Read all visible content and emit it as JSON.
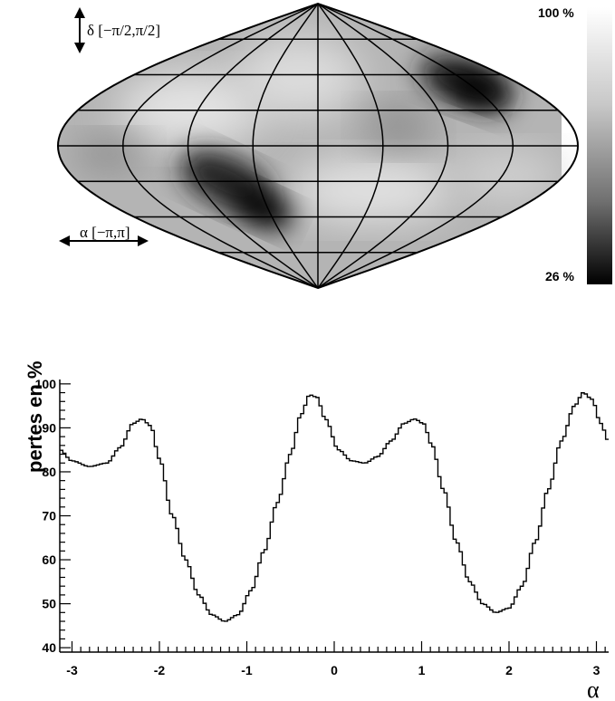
{
  "chart_data": [
    {
      "type": "heatmap",
      "projection": "sinusoidal",
      "colormap": "grayscale",
      "colorbar": {
        "max_label": "100 %",
        "min_label": "26 %",
        "max": 100,
        "min": 26
      },
      "annotations": {
        "dec": "δ [−π/2,π/2]",
        "ra": "α [−π,π]"
      },
      "grid": true,
      "dark_regions": [
        {
          "alpha": -1.3,
          "delta": -0.45,
          "value": 26
        },
        {
          "alpha": 1.85,
          "delta": 0.55,
          "value": 26
        }
      ]
    },
    {
      "type": "line",
      "style": "step",
      "title": "",
      "xlabel": "α",
      "ylabel": "pertes en %",
      "xlim": [
        -3.14,
        3.14
      ],
      "ylim": [
        39,
        101
      ],
      "xticks": [
        "-3",
        "-2",
        "-1",
        "0",
        "1",
        "2",
        "3"
      ],
      "yticks": [
        "40",
        "50",
        "60",
        "70",
        "80",
        "90",
        "100"
      ],
      "points": [
        [
          -3.14,
          85.0
        ],
        [
          -3.0,
          82.5
        ],
        [
          -2.8,
          81.2
        ],
        [
          -2.6,
          82.0
        ],
        [
          -2.45,
          85.5
        ],
        [
          -2.3,
          91.0
        ],
        [
          -2.2,
          92.0
        ],
        [
          -2.1,
          90.5
        ],
        [
          -2.0,
          83.0
        ],
        [
          -1.85,
          70.0
        ],
        [
          -1.7,
          60.0
        ],
        [
          -1.55,
          52.0
        ],
        [
          -1.4,
          47.5
        ],
        [
          -1.25,
          46.0
        ],
        [
          -1.1,
          47.5
        ],
        [
          -0.95,
          53.0
        ],
        [
          -0.8,
          62.0
        ],
        [
          -0.65,
          73.0
        ],
        [
          -0.5,
          84.0
        ],
        [
          -0.38,
          93.0
        ],
        [
          -0.28,
          97.5
        ],
        [
          -0.2,
          97.0
        ],
        [
          -0.1,
          92.0
        ],
        [
          0.05,
          85.0
        ],
        [
          0.2,
          82.5
        ],
        [
          0.35,
          82.0
        ],
        [
          0.5,
          83.5
        ],
        [
          0.65,
          87.0
        ],
        [
          0.8,
          91.0
        ],
        [
          0.92,
          92.0
        ],
        [
          1.02,
          91.0
        ],
        [
          1.12,
          86.0
        ],
        [
          1.25,
          76.0
        ],
        [
          1.4,
          64.0
        ],
        [
          1.55,
          55.0
        ],
        [
          1.7,
          50.0
        ],
        [
          1.85,
          48.0
        ],
        [
          2.0,
          49.0
        ],
        [
          2.15,
          54.0
        ],
        [
          2.3,
          64.0
        ],
        [
          2.45,
          76.0
        ],
        [
          2.6,
          87.0
        ],
        [
          2.75,
          95.0
        ],
        [
          2.85,
          98.0
        ],
        [
          2.95,
          96.5
        ],
        [
          3.05,
          91.0
        ],
        [
          3.14,
          87.0
        ]
      ]
    }
  ]
}
